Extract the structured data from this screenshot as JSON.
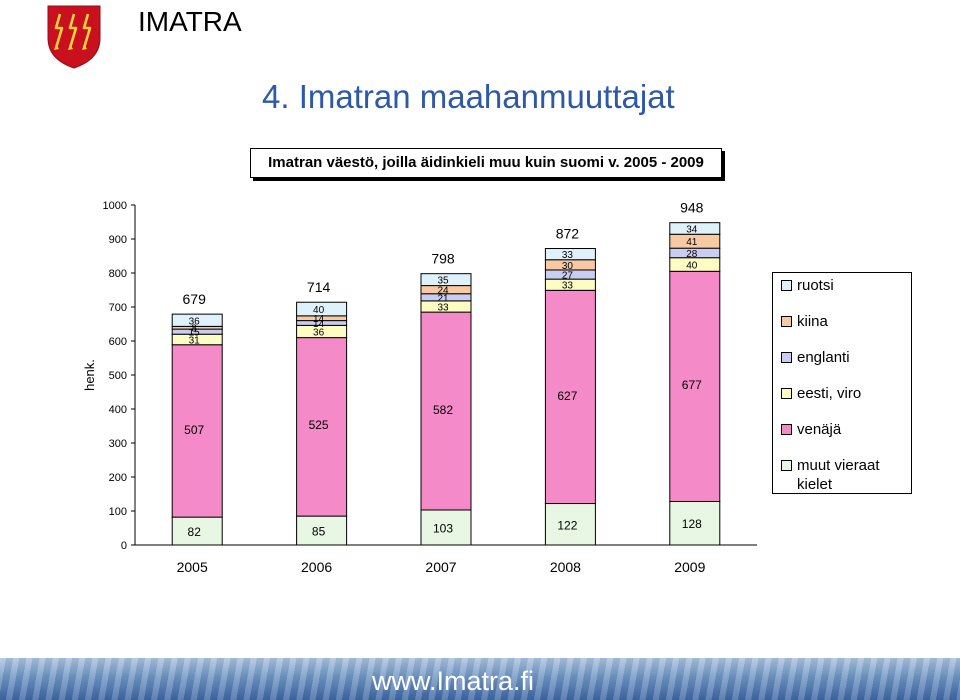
{
  "header": {
    "brand": "IMATRA"
  },
  "page": {
    "title": "4. Imatran maahanmuuttajat",
    "footer_url": "www.Imatra.fi"
  },
  "colors": {
    "ruotsi": "#dff2fb",
    "kiina": "#f8caa4",
    "englanti": "#c9cdf2",
    "eesti_viro": "#fdfcc2",
    "venaja": "#f48ac7",
    "muut": "#e8f7e3",
    "footer": "#5a82bb",
    "title": "#2e58a8"
  },
  "chart_data": {
    "type": "bar",
    "stacked": true,
    "title": "Imatran väestö, joilla äidinkieli muu kuin suomi v. 2005 - 2009",
    "ylabel": "henk.",
    "ylim": [
      0,
      1000
    ],
    "yticks": [
      "0",
      "100",
      "200",
      "300",
      "400",
      "500",
      "600",
      "700",
      "800",
      "900",
      "1000"
    ],
    "categories": [
      "2005",
      "2006",
      "2007",
      "2008",
      "2009"
    ],
    "series": [
      {
        "name": "muut vieraat kielet",
        "key": "muut",
        "values": [
          82,
          85,
          103,
          122,
          128
        ]
      },
      {
        "name": "venäjä",
        "key": "venaja",
        "values": [
          507,
          525,
          582,
          627,
          677
        ]
      },
      {
        "name": "eesti, viro",
        "key": "eesti_viro",
        "values": [
          31,
          36,
          33,
          33,
          40
        ]
      },
      {
        "name": "englanti",
        "key": "englanti",
        "values": [
          15,
          14,
          21,
          27,
          28
        ]
      },
      {
        "name": "kiina",
        "key": "kiina",
        "values": [
          8,
          14,
          24,
          30,
          41
        ]
      },
      {
        "name": "ruotsi",
        "key": "ruotsi",
        "values": [
          36,
          40,
          35,
          33,
          34
        ]
      }
    ],
    "totals": [
      679,
      714,
      798,
      872,
      948
    ],
    "legend_order": [
      "ruotsi",
      "kiina",
      "englanti",
      "eesti_viro",
      "venaja",
      "muut"
    ],
    "grid": false,
    "legend_position": "right"
  }
}
